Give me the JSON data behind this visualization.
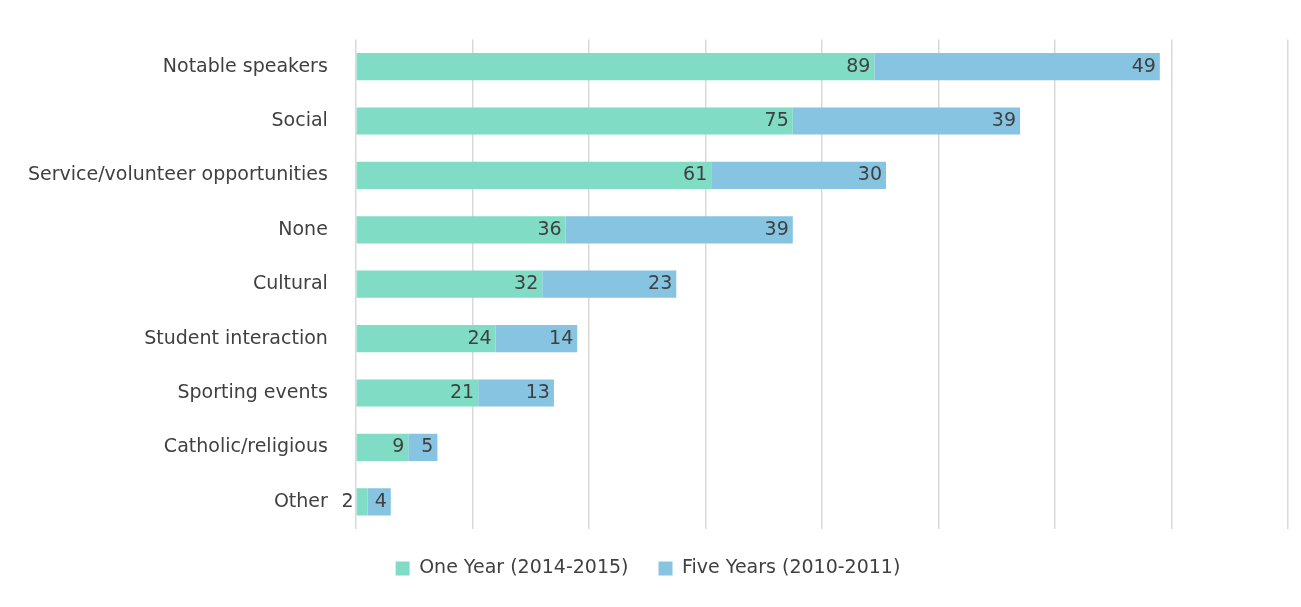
{
  "chart_data": {
    "type": "bar",
    "orientation": "horizontal",
    "stacked": true,
    "categories": [
      "Notable speakers",
      "Social",
      "Service/volunteer opportunities",
      "None",
      "Cultural",
      "Student interaction",
      "Sporting events",
      "Catholic/religious",
      "Other"
    ],
    "series": [
      {
        "name": "One Year (2014-2015)",
        "color": "#80dcc5",
        "values": [
          89,
          75,
          61,
          36,
          32,
          24,
          21,
          9,
          2
        ]
      },
      {
        "name": "Five Years (2010-2011)",
        "color": "#86c4e1",
        "values": [
          49,
          39,
          30,
          39,
          23,
          14,
          13,
          5,
          4
        ]
      }
    ],
    "xlim": [
      0,
      160
    ],
    "xticks": [
      {
        "value": 0,
        "label": null
      },
      {
        "value": 20,
        "label": null
      },
      {
        "value": 40,
        "label": null
      },
      {
        "value": 60,
        "label": null
      },
      {
        "value": 80,
        "label": null
      },
      {
        "value": 100,
        "label": null
      },
      {
        "value": 120,
        "label": null
      },
      {
        "value": 140,
        "label": null
      },
      {
        "value": 160,
        "label": null
      }
    ],
    "tick_labels": "y",
    "grid": "x",
    "legend": "bottom",
    "data_labels": true
  }
}
